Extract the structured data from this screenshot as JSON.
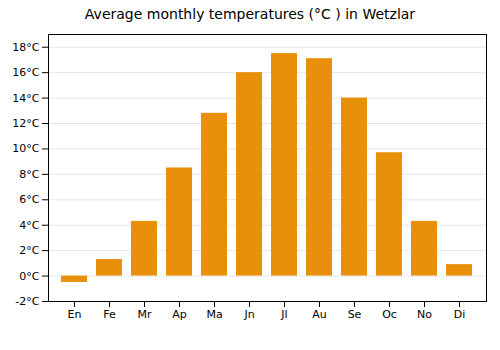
{
  "chart_data": {
    "type": "bar",
    "title": "Average monthly temperatures (°C ) in Wetzlar",
    "categories": [
      "En",
      "Fe",
      "Mr",
      "Ap",
      "Ma",
      "Jn",
      "Jl",
      "Au",
      "Se",
      "Oc",
      "No",
      "Di"
    ],
    "values": [
      -0.5,
      1.3,
      4.3,
      8.5,
      12.8,
      16.0,
      17.5,
      17.1,
      14.0,
      9.7,
      4.3,
      0.9
    ],
    "color": "#E8900A",
    "ylim": [
      -2,
      19
    ],
    "yticks": [
      {
        "value": -2,
        "label": "-2°C"
      },
      {
        "value": 0,
        "label": "0°C"
      },
      {
        "value": 2,
        "label": "2°C"
      },
      {
        "value": 4,
        "label": "4°C"
      },
      {
        "value": 6,
        "label": "6°C"
      },
      {
        "value": 8,
        "label": "8°C"
      },
      {
        "value": 10,
        "label": "10°C"
      },
      {
        "value": 12,
        "label": "12°C"
      },
      {
        "value": 14,
        "label": "14°C"
      },
      {
        "value": 16,
        "label": "16°C"
      },
      {
        "value": 18,
        "label": "18°C"
      }
    ],
    "grid": true
  }
}
